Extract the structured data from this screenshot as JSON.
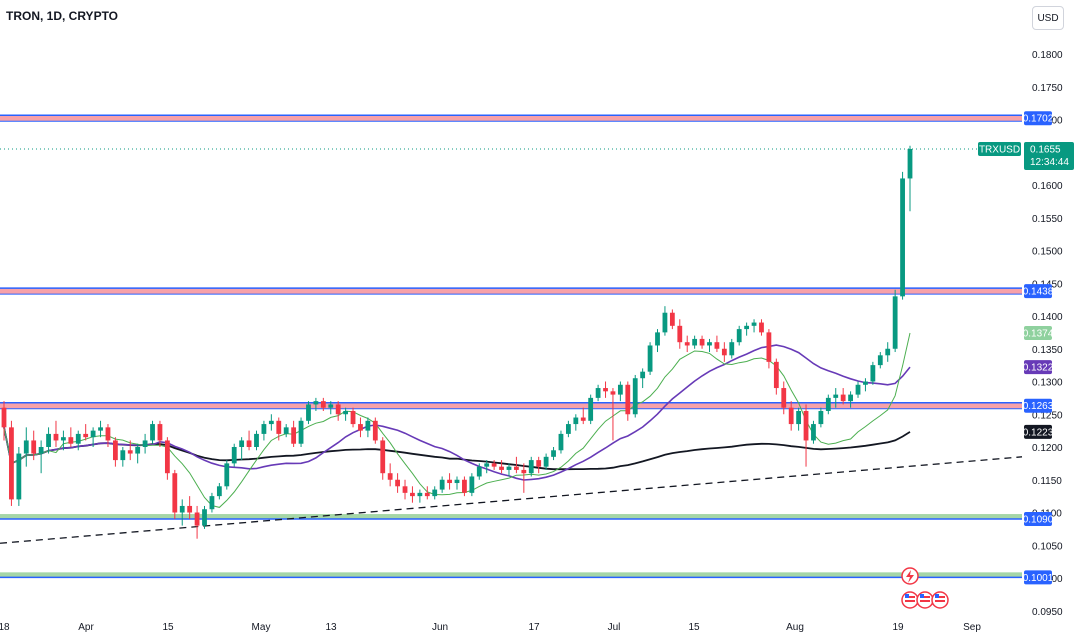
{
  "header": {
    "title": "TRON, 1D, CRYPTO",
    "currency": "USD"
  },
  "colors": {
    "up": "#089981",
    "down": "#f23645",
    "ma_fast": "#4caf50",
    "ma_mid": "#673ab7",
    "ma_slow": "#131722",
    "resistance_fill": "#f7a1a9",
    "resistance_line": "#2962ff",
    "support_fill": "#a5d6a7",
    "current": "#089981"
  },
  "price_axis": {
    "ticks": [
      "0.1800",
      "0.1750",
      "0.1700",
      "0.1650",
      "0.1600",
      "0.1550",
      "0.1500",
      "0.1450",
      "0.1400",
      "0.1350",
      "0.1300",
      "0.1250",
      "0.1200",
      "0.1150",
      "0.1100",
      "0.1050",
      "0.1000",
      "0.0950"
    ],
    "range": [
      0.095,
      0.18
    ]
  },
  "time_axis": {
    "labels": [
      "18",
      "Apr",
      "15",
      "May",
      "13",
      "Jun",
      "17",
      "Jul",
      "15",
      "Aug",
      "19",
      "Sep"
    ]
  },
  "levels": [
    {
      "value": 0.1702,
      "label": "0.1702",
      "kind": "resistance"
    },
    {
      "value": 0.1438,
      "label": "0.1438",
      "kind": "resistance"
    },
    {
      "value": 0.1263,
      "label": "0.1263",
      "kind": "resistance"
    },
    {
      "value": 0.109,
      "label": "0.1090",
      "kind": "support"
    },
    {
      "value": 0.1001,
      "label": "0.1001",
      "kind": "support"
    }
  ],
  "indicators": [
    {
      "label": "0.1374",
      "value": 0.1374,
      "kind": "ma_fast"
    },
    {
      "label": "0.1322",
      "value": 0.1322,
      "kind": "ma_mid"
    },
    {
      "label": "0.1223",
      "value": 0.1223,
      "kind": "ma_slow"
    }
  ],
  "current_price": {
    "symbol": "TRXUSD",
    "price": "0.1655",
    "countdown": "12:34:44",
    "value": 0.1655
  },
  "chart_data": {
    "type": "candlestick",
    "candles": [
      [
        0.126,
        0.127,
        0.121,
        0.123
      ],
      [
        0.123,
        0.124,
        0.111,
        0.112
      ],
      [
        0.112,
        0.12,
        0.111,
        0.119
      ],
      [
        0.119,
        0.123,
        0.117,
        0.121
      ],
      [
        0.121,
        0.1225,
        0.118,
        0.119
      ],
      [
        0.119,
        0.121,
        0.116,
        0.12
      ],
      [
        0.12,
        0.123,
        0.119,
        0.122
      ],
      [
        0.122,
        0.124,
        0.12,
        0.121
      ],
      [
        0.121,
        0.1225,
        0.1195,
        0.1215
      ],
      [
        0.1215,
        0.123,
        0.12,
        0.1205
      ],
      [
        0.1205,
        0.1225,
        0.1195,
        0.122
      ],
      [
        0.122,
        0.1235,
        0.121,
        0.1215
      ],
      [
        0.1215,
        0.123,
        0.12,
        0.1225
      ],
      [
        0.1225,
        0.124,
        0.1215,
        0.123
      ],
      [
        0.123,
        0.1235,
        0.12,
        0.121
      ],
      [
        0.121,
        0.1215,
        0.117,
        0.118
      ],
      [
        0.118,
        0.12,
        0.117,
        0.1195
      ],
      [
        0.1195,
        0.121,
        0.118,
        0.119
      ],
      [
        0.119,
        0.1205,
        0.1175,
        0.12
      ],
      [
        0.12,
        0.122,
        0.119,
        0.121
      ],
      [
        0.121,
        0.124,
        0.1205,
        0.1235
      ],
      [
        0.1235,
        0.124,
        0.12,
        0.121
      ],
      [
        0.121,
        0.1215,
        0.115,
        0.116
      ],
      [
        0.116,
        0.1165,
        0.109,
        0.11
      ],
      [
        0.11,
        0.112,
        0.108,
        0.111
      ],
      [
        0.111,
        0.1125,
        0.109,
        0.11
      ],
      [
        0.11,
        0.111,
        0.106,
        0.108
      ],
      [
        0.108,
        0.111,
        0.1075,
        0.1105
      ],
      [
        0.1105,
        0.113,
        0.11,
        0.1125
      ],
      [
        0.1125,
        0.1145,
        0.112,
        0.114
      ],
      [
        0.114,
        0.118,
        0.1135,
        0.1175
      ],
      [
        0.1175,
        0.1205,
        0.117,
        0.12
      ],
      [
        0.12,
        0.1215,
        0.118,
        0.121
      ],
      [
        0.121,
        0.1225,
        0.1195,
        0.12
      ],
      [
        0.12,
        0.1225,
        0.1195,
        0.122
      ],
      [
        0.122,
        0.124,
        0.121,
        0.1235
      ],
      [
        0.1235,
        0.125,
        0.1225,
        0.124
      ],
      [
        0.124,
        0.1245,
        0.121,
        0.122
      ],
      [
        0.122,
        0.1235,
        0.1215,
        0.123
      ],
      [
        0.123,
        0.124,
        0.12,
        0.1205
      ],
      [
        0.1205,
        0.1245,
        0.12,
        0.124
      ],
      [
        0.124,
        0.127,
        0.1235,
        0.1265
      ],
      [
        0.1265,
        0.1275,
        0.1255,
        0.127
      ],
      [
        0.127,
        0.1275,
        0.1255,
        0.126
      ],
      [
        0.126,
        0.127,
        0.125,
        0.1265
      ],
      [
        0.1265,
        0.127,
        0.124,
        0.125
      ],
      [
        0.125,
        0.126,
        0.124,
        0.1255
      ],
      [
        0.1255,
        0.126,
        0.123,
        0.1235
      ],
      [
        0.1235,
        0.1245,
        0.1215,
        0.1225
      ],
      [
        0.1225,
        0.1245,
        0.1215,
        0.124
      ],
      [
        0.124,
        0.1245,
        0.1205,
        0.121
      ],
      [
        0.121,
        0.1215,
        0.115,
        0.116
      ],
      [
        0.116,
        0.1175,
        0.114,
        0.115
      ],
      [
        0.115,
        0.116,
        0.113,
        0.114
      ],
      [
        0.114,
        0.115,
        0.112,
        0.113
      ],
      [
        0.113,
        0.114,
        0.1115,
        0.1125
      ],
      [
        0.1125,
        0.1135,
        0.1115,
        0.113
      ],
      [
        0.113,
        0.114,
        0.112,
        0.1125
      ],
      [
        0.1125,
        0.114,
        0.112,
        0.1135
      ],
      [
        0.1135,
        0.1155,
        0.113,
        0.115
      ],
      [
        0.115,
        0.116,
        0.1135,
        0.1145
      ],
      [
        0.1145,
        0.1155,
        0.1135,
        0.115
      ],
      [
        0.115,
        0.1155,
        0.1125,
        0.113
      ],
      [
        0.113,
        0.116,
        0.1125,
        0.1155
      ],
      [
        0.1155,
        0.1175,
        0.115,
        0.117
      ],
      [
        0.117,
        0.118,
        0.116,
        0.1175
      ],
      [
        0.1175,
        0.118,
        0.1165,
        0.117
      ],
      [
        0.117,
        0.118,
        0.116,
        0.1165
      ],
      [
        0.1165,
        0.1175,
        0.1155,
        0.117
      ],
      [
        0.117,
        0.1185,
        0.116,
        0.1165
      ],
      [
        0.1165,
        0.1175,
        0.113,
        0.116
      ],
      [
        0.116,
        0.1185,
        0.1155,
        0.118
      ],
      [
        0.118,
        0.1185,
        0.116,
        0.117
      ],
      [
        0.117,
        0.119,
        0.1165,
        0.1185
      ],
      [
        0.1185,
        0.12,
        0.118,
        0.1195
      ],
      [
        0.1195,
        0.1225,
        0.119,
        0.122
      ],
      [
        0.122,
        0.124,
        0.1215,
        0.1235
      ],
      [
        0.1235,
        0.125,
        0.1225,
        0.1245
      ],
      [
        0.1245,
        0.126,
        0.1235,
        0.124
      ],
      [
        0.124,
        0.128,
        0.1235,
        0.1275
      ],
      [
        0.1275,
        0.1295,
        0.127,
        0.129
      ],
      [
        0.129,
        0.13,
        0.1275,
        0.1285
      ],
      [
        0.1285,
        0.129,
        0.121,
        0.128
      ],
      [
        0.128,
        0.13,
        0.127,
        0.1295
      ],
      [
        0.1295,
        0.13,
        0.124,
        0.125
      ],
      [
        0.125,
        0.131,
        0.1245,
        0.1305
      ],
      [
        0.1305,
        0.132,
        0.129,
        0.1315
      ],
      [
        0.1315,
        0.136,
        0.131,
        0.1355
      ],
      [
        0.1355,
        0.138,
        0.1345,
        0.1375
      ],
      [
        0.1375,
        0.1415,
        0.137,
        0.1405
      ],
      [
        0.1405,
        0.141,
        0.138,
        0.1385
      ],
      [
        0.1385,
        0.1395,
        0.135,
        0.136
      ],
      [
        0.136,
        0.137,
        0.1345,
        0.1355
      ],
      [
        0.1355,
        0.137,
        0.135,
        0.1365
      ],
      [
        0.1365,
        0.137,
        0.135,
        0.1355
      ],
      [
        0.1355,
        0.1365,
        0.1345,
        0.136
      ],
      [
        0.136,
        0.137,
        0.1345,
        0.135
      ],
      [
        0.135,
        0.136,
        0.133,
        0.134
      ],
      [
        0.134,
        0.1365,
        0.1335,
        0.136
      ],
      [
        0.136,
        0.1385,
        0.1355,
        0.138
      ],
      [
        0.138,
        0.139,
        0.137,
        0.1385
      ],
      [
        0.1385,
        0.1395,
        0.1375,
        0.139
      ],
      [
        0.139,
        0.1395,
        0.137,
        0.1375
      ],
      [
        0.1375,
        0.138,
        0.132,
        0.133
      ],
      [
        0.133,
        0.1335,
        0.128,
        0.129
      ],
      [
        0.129,
        0.13,
        0.125,
        0.126
      ],
      [
        0.126,
        0.127,
        0.1225,
        0.1235
      ],
      [
        0.1235,
        0.126,
        0.1225,
        0.1255
      ],
      [
        0.1255,
        0.1265,
        0.117,
        0.121
      ],
      [
        0.121,
        0.124,
        0.1205,
        0.1235
      ],
      [
        0.1235,
        0.126,
        0.123,
        0.1255
      ],
      [
        0.1255,
        0.128,
        0.125,
        0.1275
      ],
      [
        0.1275,
        0.129,
        0.126,
        0.128
      ],
      [
        0.128,
        0.129,
        0.1265,
        0.127
      ],
      [
        0.127,
        0.1285,
        0.126,
        0.128
      ],
      [
        0.128,
        0.13,
        0.1275,
        0.1295
      ],
      [
        0.1295,
        0.1305,
        0.1285,
        0.13
      ],
      [
        0.13,
        0.133,
        0.1295,
        0.1325
      ],
      [
        0.1325,
        0.1345,
        0.132,
        0.134
      ],
      [
        0.134,
        0.136,
        0.133,
        0.135
      ],
      [
        0.135,
        0.144,
        0.1345,
        0.143
      ],
      [
        0.143,
        0.162,
        0.1425,
        0.161
      ],
      [
        0.161,
        0.166,
        0.156,
        0.1655
      ]
    ],
    "ma_fast_target": 0.1374,
    "ma_mid_target": 0.1322,
    "ma_slow_target": 0.1223,
    "trendline": {
      "start": 0.1053,
      "end": 0.1185
    }
  },
  "events": {
    "flash_icon": "lightning-icon",
    "flags": [
      "us-flag-icon",
      "us-flag-icon",
      "us-flag-icon"
    ]
  }
}
